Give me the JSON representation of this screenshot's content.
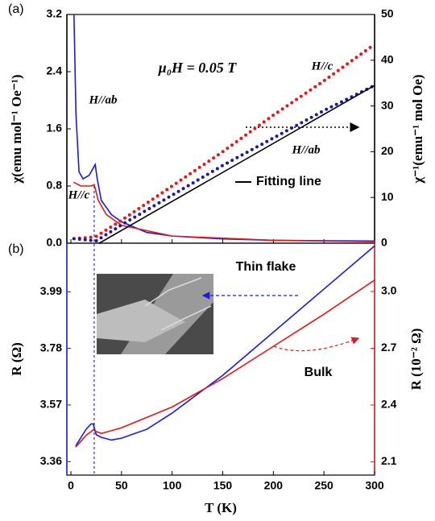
{
  "chart_data": [
    {
      "type": "line",
      "panel_label": "(a)",
      "y_label": "χ(emu  mol⁻¹ Oe⁻¹)",
      "y2_label": "χ⁻¹(emu⁻¹  mol Oe)",
      "xlim": [
        -4,
        300
      ],
      "ylim": [
        0,
        3.2
      ],
      "yticks": [
        {
          "value": 0,
          "label": "0.0"
        },
        {
          "value": 0.8,
          "label": "0.8"
        },
        {
          "value": 1.6,
          "label": "1.6"
        },
        {
          "value": 2.4,
          "label": "2.4"
        },
        {
          "value": 3.2,
          "label": "3.2"
        }
      ],
      "y2lim": [
        0,
        50
      ],
      "y2ticks": [
        0,
        10,
        20,
        30,
        40,
        50
      ],
      "annotations": [
        "μ₀H = 0.05 T",
        "H//c",
        "H//ab",
        "H//ab",
        "H//c"
      ],
      "vline": {
        "x": 23,
        "color": "#2a2ae0"
      },
      "series": [
        {
          "color": "#1a1ae6",
          "style": "solid",
          "x": [
            3,
            5,
            8,
            12,
            18,
            22,
            24,
            26,
            30,
            40,
            50,
            75,
            100,
            150,
            200,
            300
          ],
          "values": [
            3.2,
            1.8,
            1.0,
            0.9,
            0.95,
            1.05,
            1.1,
            0.9,
            0.6,
            0.4,
            0.3,
            0.15,
            0.1,
            0.06,
            0.04,
            0.03
          ]
        },
        {
          "color": "#e01a1a",
          "style": "solid",
          "x": [
            3,
            10,
            20,
            23,
            27,
            35,
            50,
            100,
            200,
            300
          ],
          "values": [
            0.85,
            0.8,
            0.8,
            0.82,
            0.6,
            0.4,
            0.25,
            0.1,
            0.04,
            0.02
          ]
        },
        {
          "color": "#e01a1a",
          "style": "dotted",
          "axis": "y2",
          "x": [
            3,
            20,
            25,
            50,
            100,
            150,
            200,
            250,
            300
          ],
          "values": [
            1,
            1.3,
            1.5,
            5,
            12.5,
            20,
            28,
            35.5,
            43.5
          ]
        },
        {
          "color": "#1a1a9e",
          "style": "dotted",
          "axis": "y2",
          "x": [
            3,
            25,
            50,
            100,
            150,
            200,
            250,
            300
          ],
          "values": [
            1,
            0.5,
            4,
            10.5,
            17,
            23,
            29,
            34.5
          ]
        },
        {
          "name": "Fitting line",
          "color": "#000000",
          "style": "solid",
          "axis": "y2",
          "x": [
            28,
            300
          ],
          "values": [
            0,
            34.5
          ]
        }
      ]
    },
    {
      "type": "line",
      "panel_label": "(b)",
      "x_label": "T (K)",
      "y_label": "R (Ω)",
      "y2_label": "R (10⁻² Ω)",
      "xlim": [
        -4,
        300
      ],
      "xticks": [
        0,
        50,
        100,
        150,
        200,
        250,
        300
      ],
      "ylim": [
        3.31,
        4.17
      ],
      "yticks": [
        3.36,
        3.57,
        3.78,
        3.99
      ],
      "yaxis_color": "#1a1ae6",
      "y2lim": [
        2.03,
        3.255
      ],
      "y2ticks": [
        2.1,
        2.4,
        2.7,
        {
          "value": 3.0,
          "label": "3.0"
        }
      ],
      "y2axis_color": "#e01a1a",
      "annotations": [
        "Thin flake",
        "Bulk"
      ],
      "series": [
        {
          "color": "#1a1ae6",
          "style": "solid",
          "x": [
            5,
            10,
            15,
            20,
            22,
            25,
            30,
            40,
            50,
            75,
            100,
            150,
            200,
            250,
            300
          ],
          "values": [
            3.42,
            3.45,
            3.48,
            3.5,
            3.5,
            3.46,
            3.45,
            3.44,
            3.447,
            3.48,
            3.54,
            3.68,
            3.84,
            4.0,
            4.16
          ]
        },
        {
          "color": "#e01a1a",
          "style": "solid",
          "axis": "y2",
          "x": [
            5,
            10,
            15,
            20,
            22,
            25,
            30,
            50,
            100,
            150,
            200,
            250,
            300
          ],
          "values": [
            2.18,
            2.21,
            2.24,
            2.26,
            2.27,
            2.26,
            2.25,
            2.28,
            2.39,
            2.54,
            2.71,
            2.88,
            3.06
          ]
        }
      ]
    }
  ]
}
